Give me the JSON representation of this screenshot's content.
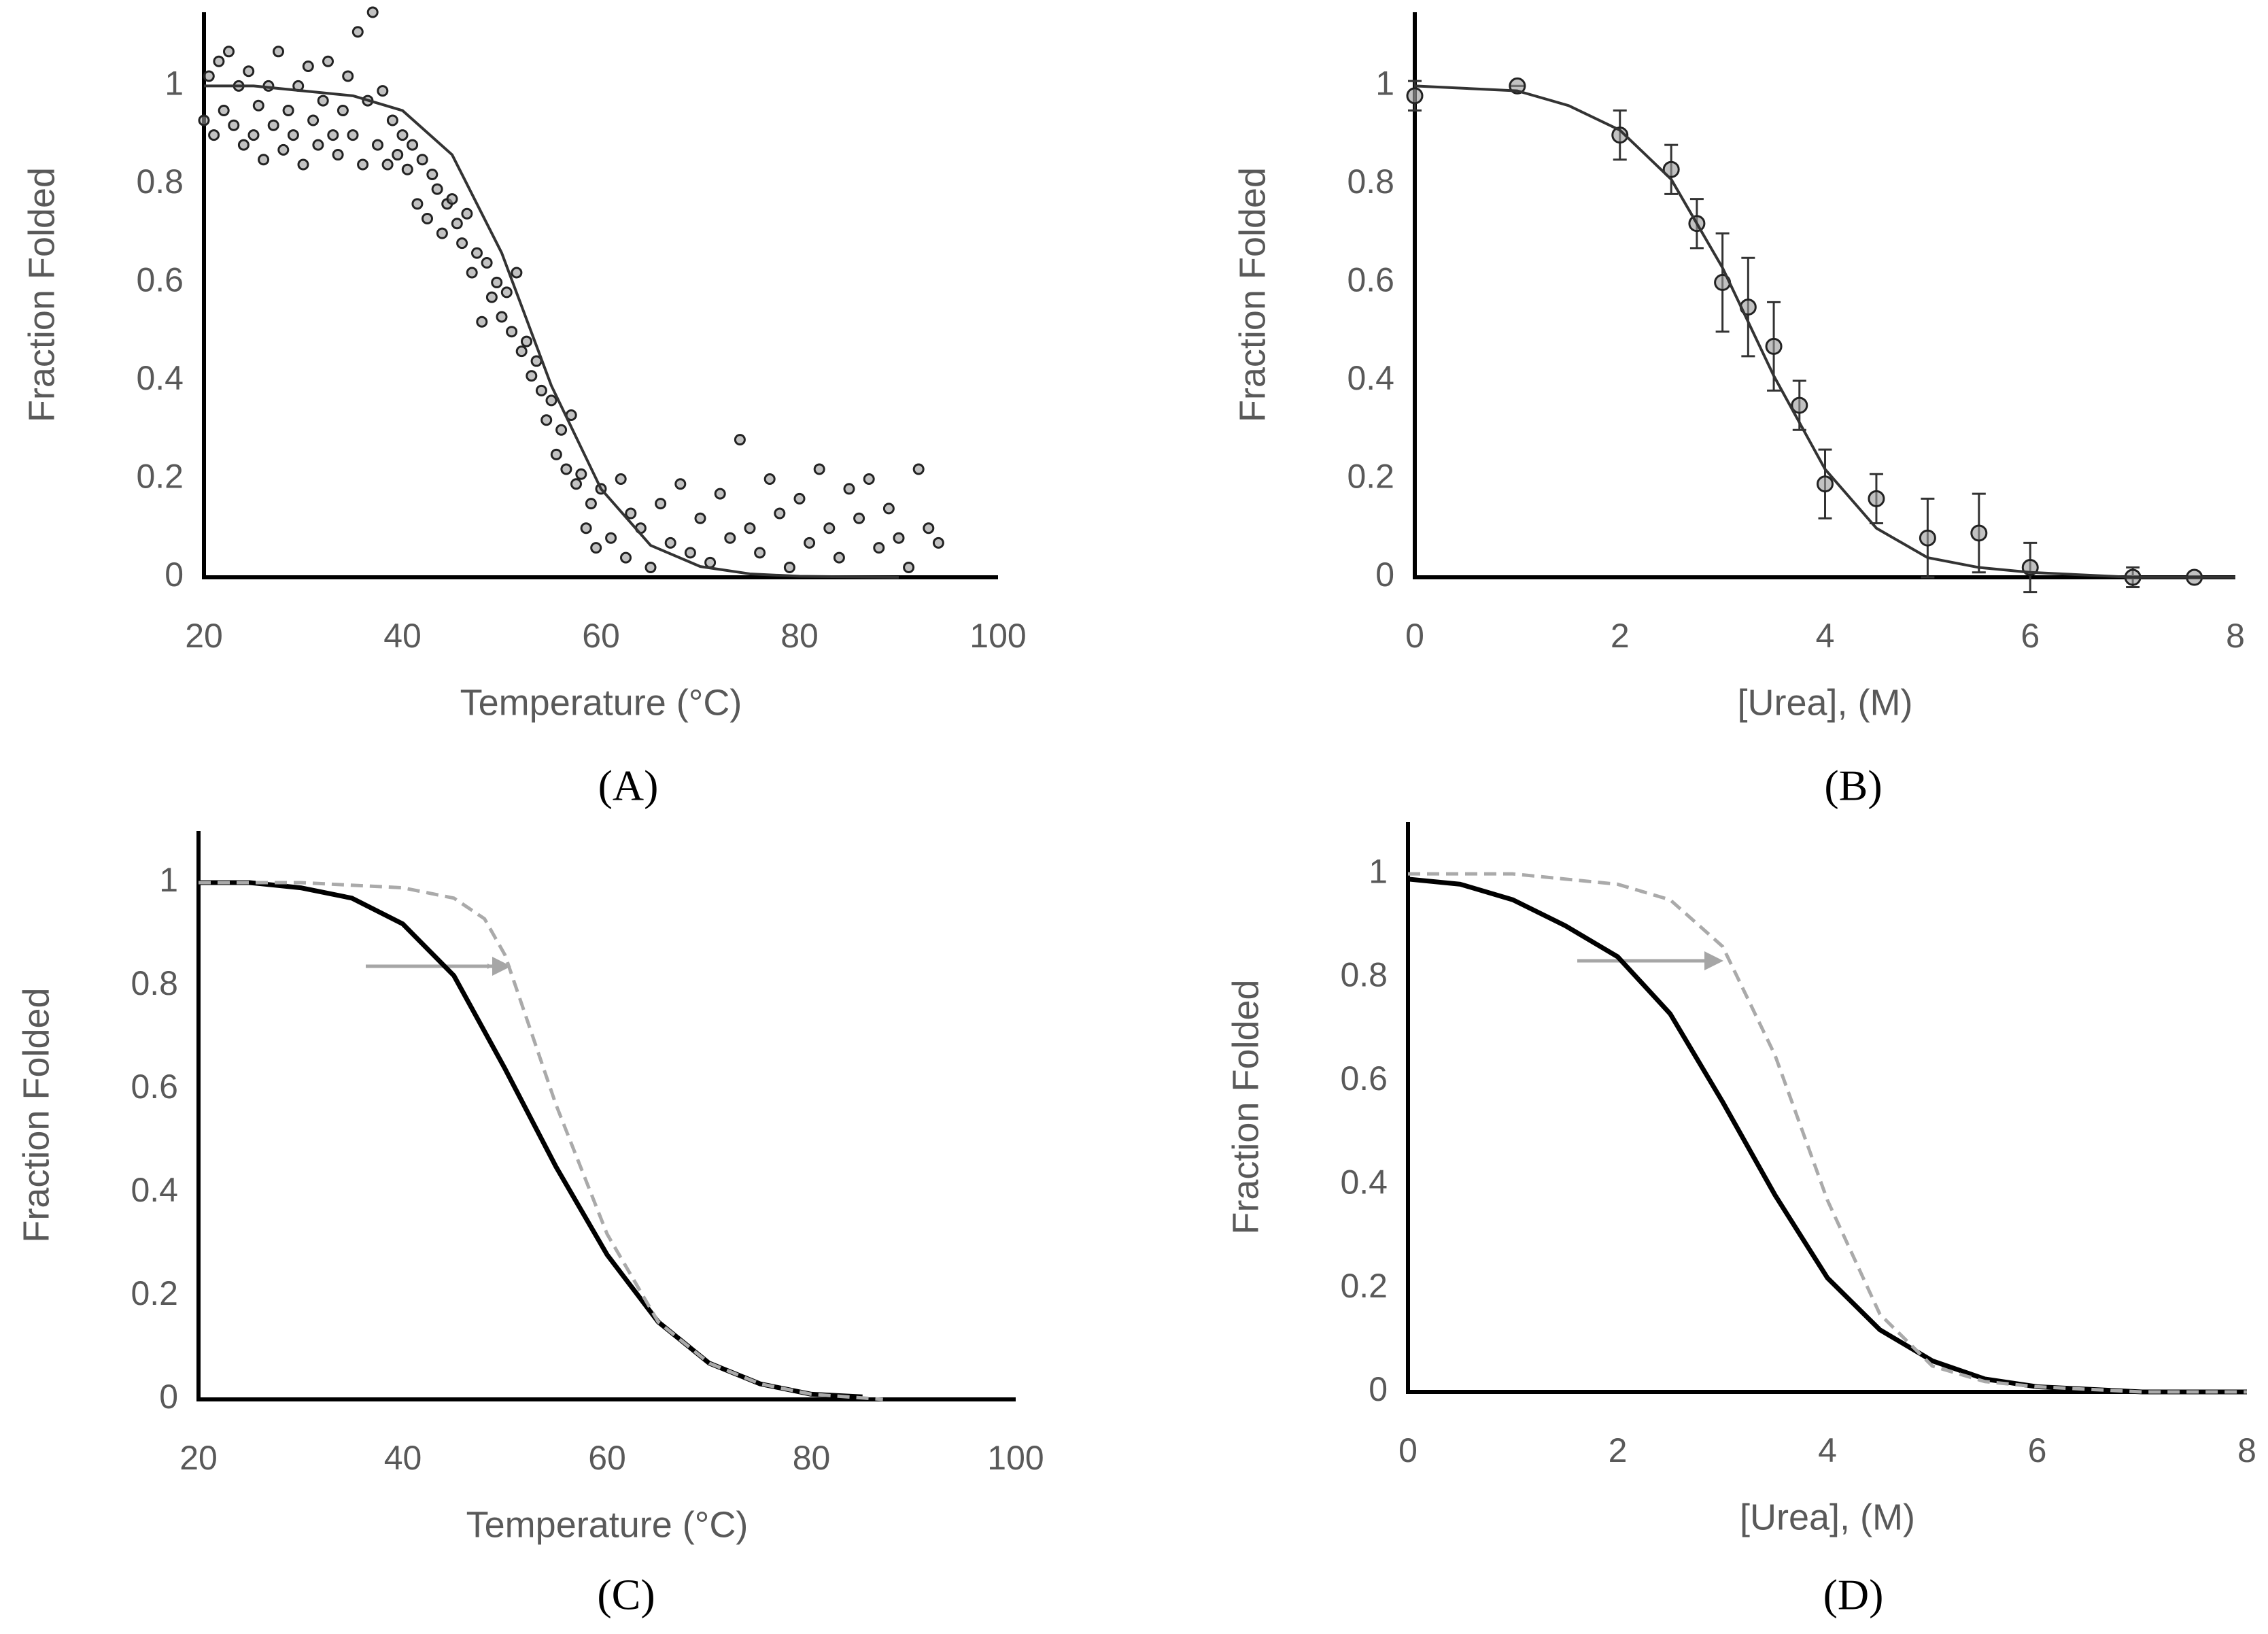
{
  "chart_data": [
    {
      "type": "scatter",
      "label": "(A)",
      "xlabel": "Temperature (°C)",
      "ylabel": "Fraction Folded",
      "xlim": [
        20,
        100
      ],
      "xticks": [
        20,
        40,
        60,
        80,
        100
      ],
      "ylim": [
        0,
        1.15
      ],
      "yticks": [
        0,
        0.2,
        0.4,
        0.6,
        0.8,
        1
      ],
      "series": [
        {
          "style": "points",
          "color": "#999999",
          "x": [
            20,
            20.5,
            21,
            21.5,
            22,
            22.5,
            23,
            23.5,
            24,
            24.5,
            25,
            25.5,
            26,
            26.5,
            27,
            27.5,
            28,
            28.5,
            29,
            29.5,
            30,
            30.5,
            31,
            31.5,
            32,
            32.5,
            33,
            33.5,
            34,
            34.5,
            35,
            35.5,
            36,
            36.5,
            37,
            37.5,
            38,
            38.5,
            39,
            39.5,
            40,
            40.5,
            41,
            41.5,
            42,
            42.5,
            43,
            43.5,
            44,
            44.5,
            45,
            45.5,
            46,
            46.5,
            47,
            47.5,
            48,
            48.5,
            49,
            49.5,
            50,
            50.5,
            51,
            51.5,
            52,
            52.5,
            53,
            53.5,
            54,
            54.5,
            55,
            55.5,
            56,
            56.5,
            57,
            57.5,
            58,
            58.5,
            59,
            59.5,
            60,
            61,
            62,
            62.5,
            63,
            64,
            65,
            66,
            67,
            68,
            69,
            70,
            71,
            72,
            73,
            74,
            75,
            76,
            77,
            78,
            79,
            80,
            81,
            82,
            83,
            84,
            85,
            86,
            87,
            88,
            89,
            90,
            91,
            92,
            93,
            94
          ],
          "values": [
            0.93,
            1.02,
            0.9,
            1.05,
            0.95,
            1.07,
            0.92,
            1.0,
            0.88,
            1.03,
            0.9,
            0.96,
            0.85,
            1.0,
            0.92,
            1.07,
            0.87,
            0.95,
            0.9,
            1.0,
            0.84,
            1.04,
            0.93,
            0.88,
            0.97,
            1.05,
            0.9,
            0.86,
            0.95,
            1.02,
            0.9,
            1.11,
            0.84,
            0.97,
            1.15,
            0.88,
            0.99,
            0.84,
            0.93,
            0.86,
            0.9,
            0.83,
            0.88,
            0.76,
            0.85,
            0.73,
            0.82,
            0.79,
            0.7,
            0.76,
            0.77,
            0.72,
            0.68,
            0.74,
            0.62,
            0.66,
            0.52,
            0.64,
            0.57,
            0.6,
            0.53,
            0.58,
            0.5,
            0.62,
            0.46,
            0.48,
            0.41,
            0.44,
            0.38,
            0.32,
            0.36,
            0.25,
            0.3,
            0.22,
            0.33,
            0.19,
            0.21,
            0.1,
            0.15,
            0.06,
            0.18,
            0.08,
            0.2,
            0.04,
            0.13,
            0.1,
            0.02,
            0.15,
            0.07,
            0.19,
            0.05,
            0.12,
            0.03,
            0.17,
            0.08,
            0.28,
            0.1,
            0.05,
            0.2,
            0.13,
            0.02,
            0.16,
            0.07,
            0.22,
            0.1,
            0.04,
            0.18,
            0.12,
            0.2,
            0.06,
            0.14,
            0.08,
            0.02,
            0.22,
            0.1,
            0.07
          ]
        },
        {
          "style": "line",
          "color": "#333333",
          "x": [
            20,
            25,
            30,
            35,
            40,
            45,
            50,
            55,
            60,
            65,
            70,
            75,
            80,
            90
          ],
          "values": [
            1.0,
            1.0,
            0.99,
            0.98,
            0.95,
            0.86,
            0.66,
            0.39,
            0.18,
            0.065,
            0.022,
            0.007,
            0.002,
            0
          ]
        }
      ]
    },
    {
      "type": "scatter",
      "label": "(B)",
      "xlabel": "[Urea], (M)",
      "ylabel": "Fraction Folded",
      "xlim": [
        0,
        8
      ],
      "xticks": [
        0,
        2,
        4,
        6,
        8
      ],
      "ylim": [
        0,
        1.15
      ],
      "yticks": [
        0,
        0.2,
        0.4,
        0.6,
        0.8,
        1
      ],
      "series": [
        {
          "style": "points",
          "color": "#999999",
          "x": [
            0,
            1,
            2,
            2.5,
            2.75,
            3,
            3.25,
            3.5,
            3.75,
            4,
            4.5,
            5,
            5.5,
            6,
            7,
            7.6
          ],
          "values": [
            0.98,
            1.0,
            0.9,
            0.83,
            0.72,
            0.6,
            0.55,
            0.47,
            0.35,
            0.19,
            0.16,
            0.08,
            0.09,
            0.02,
            0.0,
            0.0
          ],
          "errors": [
            0.03,
            0,
            0.05,
            0.05,
            0.05,
            0.1,
            0.1,
            0.09,
            0.05,
            0.07,
            0.05,
            0.08,
            0.08,
            0.05,
            0.02,
            0
          ]
        },
        {
          "style": "line",
          "color": "#333333",
          "x": [
            0,
            1,
            1.5,
            2,
            2.5,
            3,
            3.5,
            4,
            4.5,
            5,
            5.5,
            6,
            7,
            8
          ],
          "values": [
            1.0,
            0.99,
            0.96,
            0.91,
            0.81,
            0.63,
            0.41,
            0.22,
            0.1,
            0.04,
            0.02,
            0.01,
            0,
            0
          ]
        }
      ]
    },
    {
      "type": "line",
      "label": "(C)",
      "xlabel": "Temperature (°C)",
      "ylabel": "Fraction Folded",
      "xlim": [
        20,
        100
      ],
      "xticks": [
        20,
        40,
        60,
        80,
        100
      ],
      "ylim": [
        0,
        1.1
      ],
      "yticks": [
        0,
        0.2,
        0.4,
        0.6,
        0.8,
        1
      ],
      "series": [
        {
          "style": "line",
          "color": "#000000",
          "x": [
            20,
            25,
            30,
            35,
            40,
            45,
            50,
            55,
            60,
            65,
            70,
            75,
            80,
            85
          ],
          "values": [
            1,
            1,
            0.99,
            0.97,
            0.92,
            0.82,
            0.64,
            0.45,
            0.28,
            0.15,
            0.07,
            0.03,
            0.01,
            0.005
          ]
        },
        {
          "style": "dashed",
          "color": "#aaaaaa",
          "x": [
            20,
            30,
            40,
            45,
            48,
            50,
            55,
            60,
            65,
            70,
            75,
            80,
            87
          ],
          "values": [
            1,
            1,
            0.99,
            0.97,
            0.93,
            0.86,
            0.57,
            0.32,
            0.15,
            0.07,
            0.03,
            0.01,
            0
          ]
        }
      ]
    },
    {
      "type": "line",
      "label": "(D)",
      "xlabel": "[Urea], (M)",
      "ylabel": "Fraction Folded",
      "xlim": [
        0,
        8
      ],
      "xticks": [
        0,
        2,
        4,
        6,
        8
      ],
      "ylim": [
        0,
        1.1
      ],
      "yticks": [
        0,
        0.2,
        0.4,
        0.6,
        0.8,
        1
      ],
      "series": [
        {
          "style": "line",
          "color": "#000000",
          "x": [
            0,
            0.5,
            1,
            1.5,
            2,
            2.5,
            3,
            3.5,
            4,
            4.5,
            5,
            5.5,
            6,
            7,
            8
          ],
          "values": [
            0.99,
            0.98,
            0.95,
            0.9,
            0.84,
            0.73,
            0.56,
            0.38,
            0.22,
            0.12,
            0.06,
            0.025,
            0.01,
            0,
            0
          ]
        },
        {
          "style": "dashed",
          "color": "#aaaaaa",
          "x": [
            0,
            1,
            2,
            2.5,
            3,
            3.5,
            4,
            4.5,
            5,
            5.5,
            6,
            7,
            8
          ],
          "values": [
            1,
            1,
            0.98,
            0.95,
            0.86,
            0.65,
            0.37,
            0.15,
            0.05,
            0.02,
            0.01,
            0,
            0
          ]
        }
      ]
    }
  ]
}
